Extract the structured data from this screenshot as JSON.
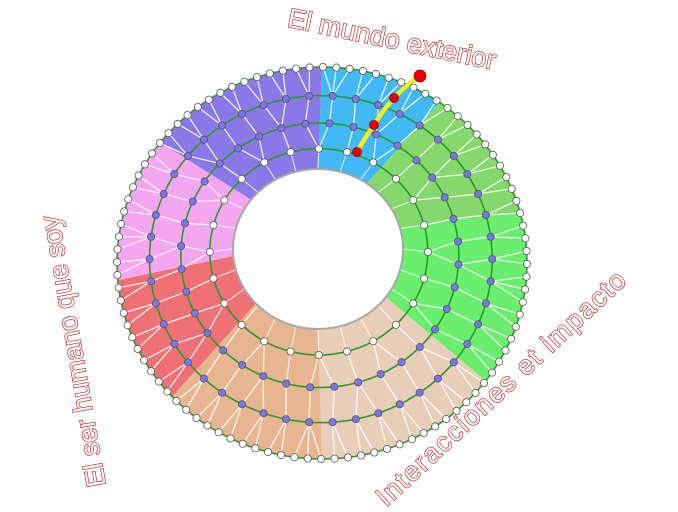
{
  "labels": {
    "top": "El mundo exterior",
    "right": "Interacciones et impacto",
    "left": "El ser humano que soy"
  },
  "colors": {
    "label_outline": "#c4161c",
    "ring_line": "#2a9a2a",
    "outer_node": "#ffffff",
    "inner_node": "#7a74ee",
    "mesh": "#ffffff",
    "path": "#f2ee1a",
    "path_node": "#e60000"
  },
  "segments": [
    {
      "id": "blue",
      "color": "#42b8f6"
    },
    {
      "id": "light-green",
      "color": "#86d86c"
    },
    {
      "id": "green",
      "color": "#6aee6e"
    },
    {
      "id": "light-tan",
      "color": "#e8cdb9"
    },
    {
      "id": "tan",
      "color": "#e7b690"
    },
    {
      "id": "red",
      "color": "#ef7075"
    },
    {
      "id": "pink",
      "color": "#f5a6f0"
    },
    {
      "id": "purple",
      "color": "#8a78e8"
    }
  ]
}
